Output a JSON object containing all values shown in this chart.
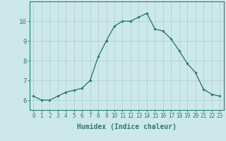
{
  "xlabel": "Humidex (Indice chaleur)",
  "ylabel": "",
  "x": [
    0,
    1,
    2,
    3,
    4,
    5,
    6,
    7,
    8,
    9,
    10,
    11,
    12,
    13,
    14,
    15,
    16,
    17,
    18,
    19,
    20,
    21,
    22,
    23
  ],
  "y": [
    6.2,
    6.0,
    6.0,
    6.2,
    6.4,
    6.5,
    6.6,
    7.0,
    8.2,
    9.0,
    9.75,
    10.0,
    10.0,
    10.2,
    10.4,
    9.6,
    9.5,
    9.1,
    8.5,
    7.85,
    7.4,
    6.55,
    6.3,
    6.2
  ],
  "line_color": "#2e7d6e",
  "marker_color": "#2e7d6e",
  "bg_color": "#cce8e8",
  "grid_color": "#aacece",
  "axis_color": "#2e7d6e",
  "ylim": [
    5.5,
    11.0
  ],
  "xlim": [
    -0.5,
    23.5
  ],
  "yticks": [
    6,
    7,
    8,
    9,
    10
  ],
  "xticks": [
    0,
    1,
    2,
    3,
    4,
    5,
    6,
    7,
    8,
    9,
    10,
    11,
    12,
    13,
    14,
    15,
    16,
    17,
    18,
    19,
    20,
    21,
    22,
    23
  ],
  "tick_fontsize": 5.5,
  "ytick_fontsize": 6.5,
  "xlabel_fontsize": 7.0
}
